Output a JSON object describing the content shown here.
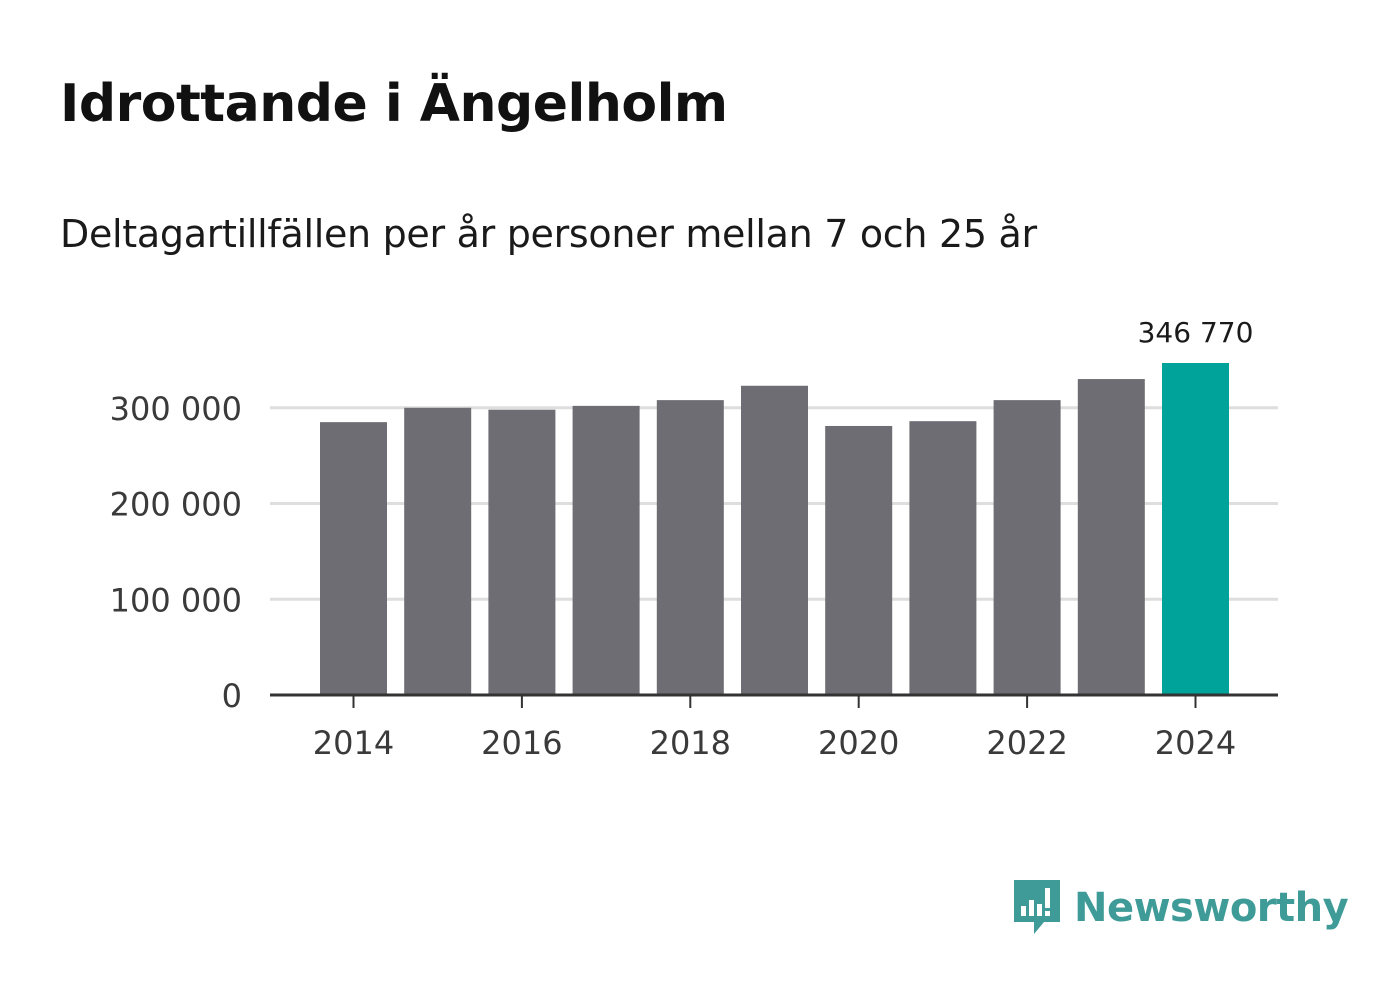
{
  "chart_data": {
    "type": "bar",
    "title": "Idrottande i Ängelholm",
    "subtitle": "Deltagartillfällen per år personer mellan 7 och 25 år",
    "categories": [
      "2014",
      "2015",
      "2016",
      "2017",
      "2018",
      "2019",
      "2020",
      "2021",
      "2022",
      "2023",
      "2024"
    ],
    "values": [
      285000,
      300000,
      298000,
      302000,
      308000,
      323000,
      281000,
      286000,
      308000,
      330000,
      346770
    ],
    "highlight_index": 10,
    "highlight_label": "346 770",
    "x_tick_labels": [
      "2014",
      "2016",
      "2018",
      "2020",
      "2022",
      "2024"
    ],
    "y_ticks": [
      0,
      100000,
      200000,
      300000
    ],
    "y_tick_labels": [
      "0",
      "100 000",
      "200 000",
      "300 000"
    ],
    "ylim": [
      0,
      346770
    ],
    "grid": true,
    "colors": {
      "bar": "#6e6d73",
      "highlight": "#00a39a",
      "grid": "#dedede",
      "axis": "#333333"
    }
  },
  "brand": {
    "name": "Newsworthy",
    "icon": "newsworthy-logo-icon",
    "color": "#3f9b97"
  }
}
